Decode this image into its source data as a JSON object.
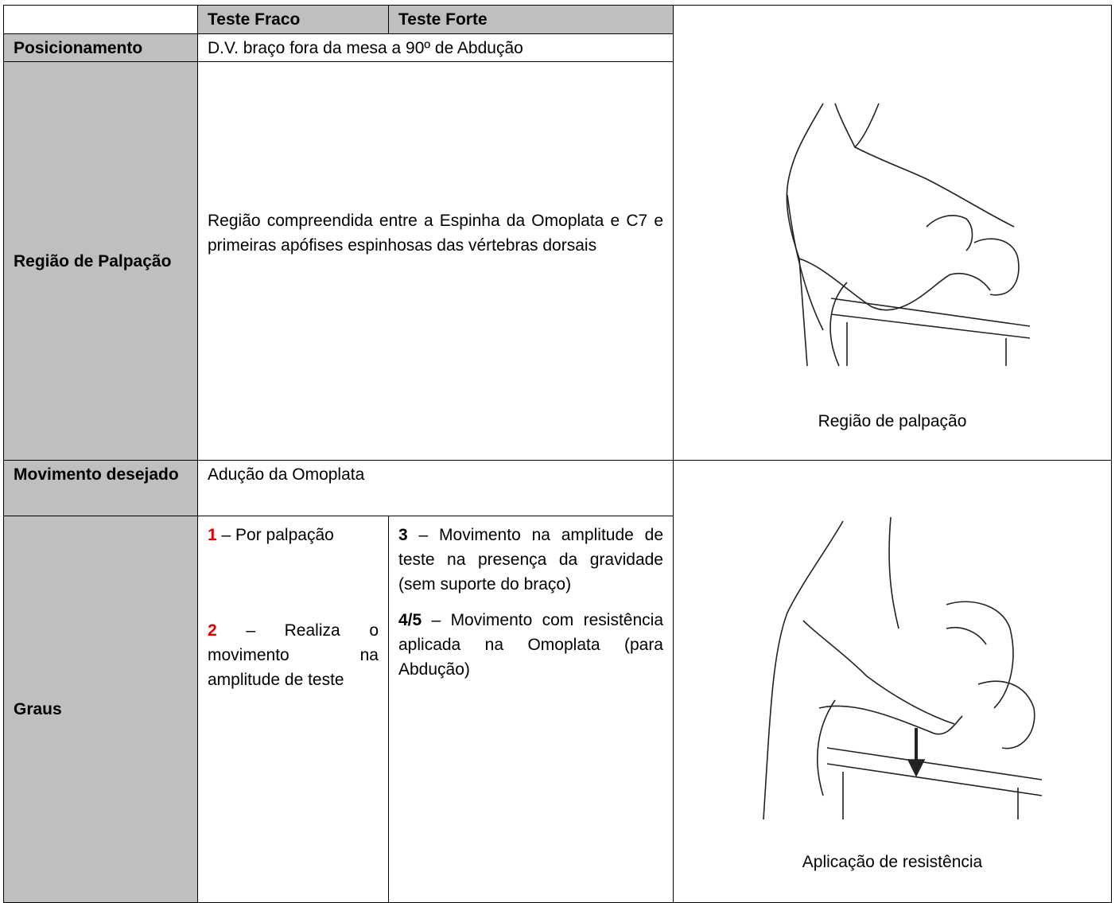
{
  "header": {
    "weak": "Teste Fraco",
    "strong": "Teste Forte"
  },
  "rows": {
    "positioning": {
      "label": "Posicionamento",
      "value": "D.V. braço fora da mesa a 90º de Abdução"
    },
    "palpation": {
      "label": "Região de Palpação",
      "value": "Região compreendida entre a Espinha da Omoplata e C7 e primeiras apófises espinhosas das vértebras dorsais"
    },
    "movement": {
      "label": "Movimento desejado",
      "value": "Adução da Omoplata"
    },
    "grades": {
      "label": "Graus",
      "weak": [
        {
          "grade": "1",
          "text": "– Por palpação"
        },
        {
          "grade": "2",
          "text": "– Realiza o movimento na amplitude de teste"
        }
      ],
      "strong": [
        {
          "grade": "3",
          "text": "– Movimento na amplitude de teste na presença da gravidade (sem suporte do braço)"
        },
        {
          "grade": "4/5",
          "text": "– Movimento com resistência aplicada na Omoplata (para Abdução)"
        }
      ]
    }
  },
  "figures": [
    {
      "caption": "Região de palpação"
    },
    {
      "caption": "Aplicação de resistência"
    }
  ]
}
